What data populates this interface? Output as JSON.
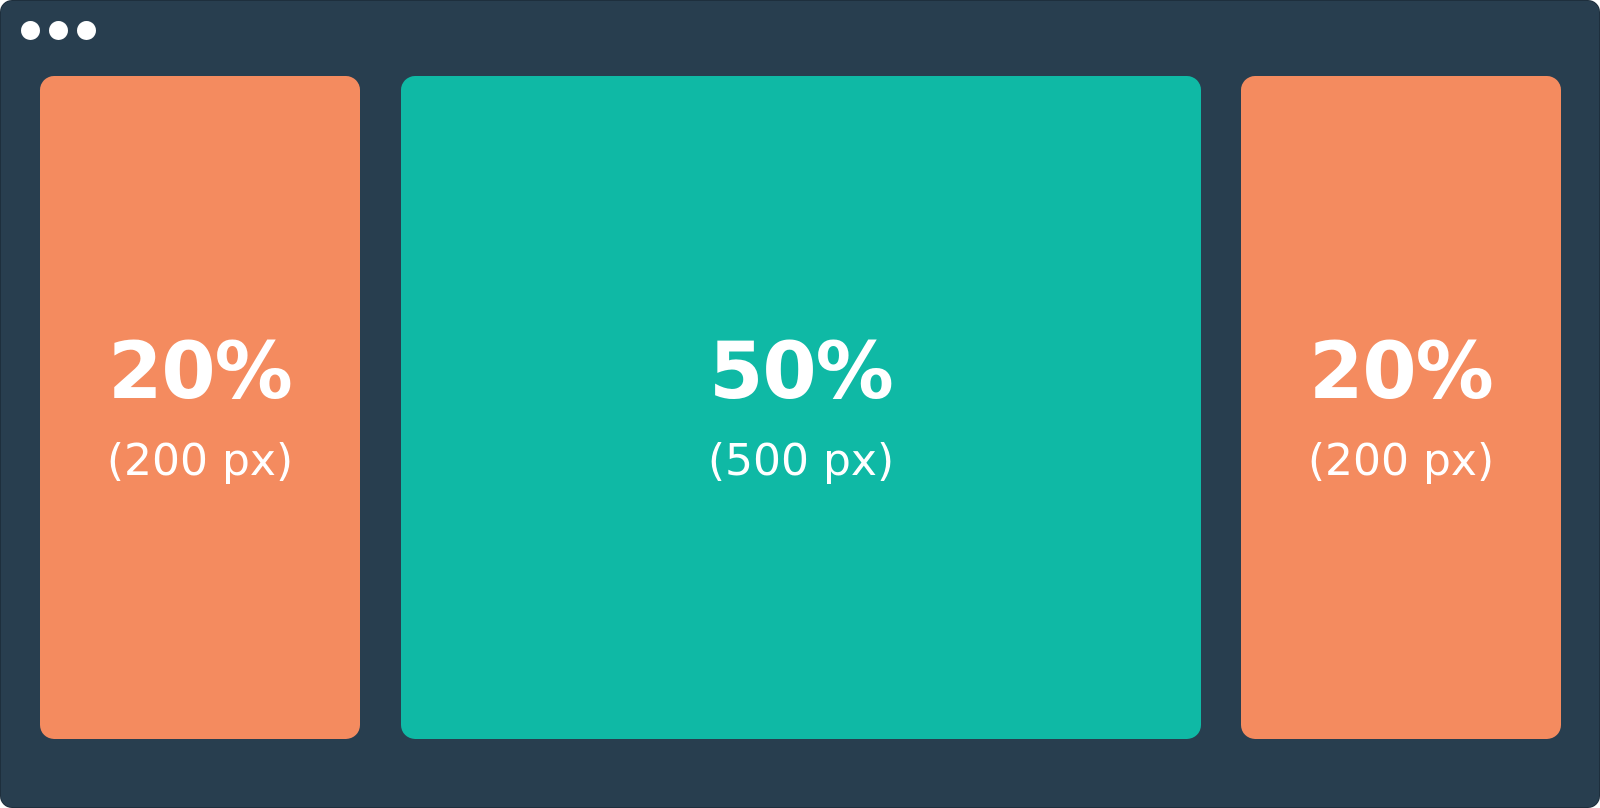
{
  "window": {
    "background_color": "#283e4f",
    "controls": [
      "dot-icon",
      "dot-icon",
      "dot-icon"
    ]
  },
  "panels": [
    {
      "percent": "20%",
      "pixels": "(200 px)",
      "color": "#f48b5f"
    },
    {
      "percent": "50%",
      "pixels": "(500 px)",
      "color": "#0fb9a5"
    },
    {
      "percent": "20%",
      "pixels": "(200 px)",
      "color": "#f48b5f"
    }
  ]
}
